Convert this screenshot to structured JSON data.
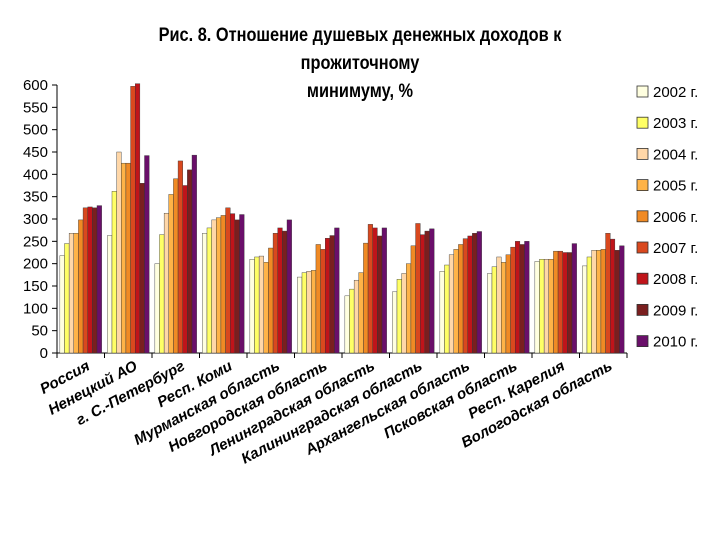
{
  "chart_data": {
    "type": "bar",
    "title_line1": "Рис. 8. Отношение душевых денежных доходов к прожиточному",
    "title_line2": "минимуму, %",
    "xlabel": "",
    "ylabel": "",
    "ylim": [
      0,
      600
    ],
    "yticks": [
      "0",
      "50",
      "100",
      "150",
      "200",
      "250",
      "300",
      "350",
      "400",
      "450",
      "500",
      "550",
      "600"
    ],
    "grid": false,
    "legend_position": "right",
    "categories": [
      "Россия",
      "Ненецкий АО",
      "г. С.-Петербург",
      "Респ. Коми",
      "Мурманская область",
      "Новгородская область",
      "Ленинградская область",
      "Калининградская область",
      "Архангельская область",
      "Псковская область",
      "Респ. Карелия",
      "Вологодская область"
    ],
    "series": [
      {
        "name": "2002 г.",
        "color": "#FFFFE0",
        "values": [
          218,
          263,
          200,
          268,
          210,
          170,
          128,
          137,
          183,
          178,
          205,
          195
        ]
      },
      {
        "name": "2003 г.",
        "color": "#FFFF66",
        "values": [
          245,
          362,
          265,
          280,
          215,
          180,
          143,
          165,
          197,
          193,
          210,
          215
        ]
      },
      {
        "name": "2004 г.",
        "color": "#FFD7A8",
        "values": [
          268,
          450,
          313,
          298,
          217,
          183,
          163,
          178,
          220,
          215,
          210,
          230
        ]
      },
      {
        "name": "2005 г.",
        "color": "#FFB347",
        "values": [
          268,
          425,
          355,
          303,
          203,
          185,
          180,
          200,
          232,
          203,
          210,
          230
        ]
      },
      {
        "name": "2006 г.",
        "color": "#F08A24",
        "values": [
          298,
          425,
          390,
          308,
          235,
          243,
          246,
          240,
          243,
          220,
          228,
          232
        ]
      },
      {
        "name": "2007 г.",
        "color": "#D9481E",
        "values": [
          325,
          597,
          430,
          325,
          268,
          232,
          288,
          290,
          256,
          237,
          228,
          268
        ]
      },
      {
        "name": "2008 г.",
        "color": "#C0141A",
        "values": [
          327,
          603,
          375,
          312,
          280,
          257,
          280,
          265,
          262,
          250,
          225,
          255
        ]
      },
      {
        "name": "2009 г.",
        "color": "#7A1F1F",
        "values": [
          325,
          380,
          410,
          298,
          273,
          263,
          262,
          273,
          268,
          243,
          225,
          230
        ]
      },
      {
        "name": "2010 г.",
        "color": "#6A0F6A",
        "values": [
          330,
          442,
          443,
          310,
          298,
          280,
          280,
          278,
          272,
          250,
          245,
          240
        ]
      }
    ]
  }
}
